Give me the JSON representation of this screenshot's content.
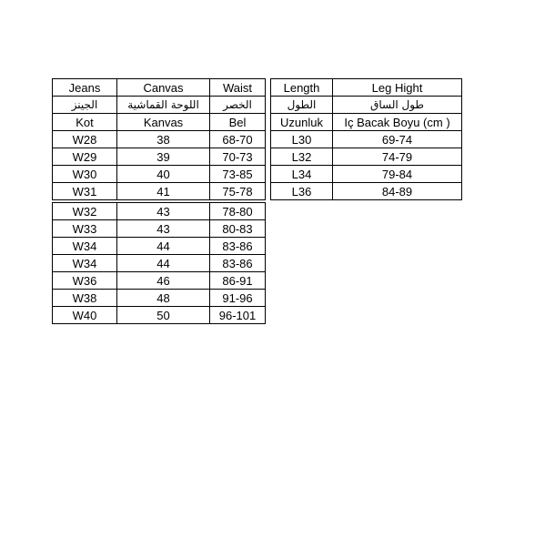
{
  "page": {
    "background_color": "#ffffff",
    "border_color": "#000000",
    "text_color": "#000000"
  },
  "size_chart": {
    "upper_left": {
      "headers_english": [
        "Jeans",
        "Canvas",
        "Waist"
      ],
      "headers_arabic": [
        "الجينز",
        "اللوحة القماشية",
        "الخصر"
      ],
      "headers_turkish": [
        "Kot",
        "Kanvas",
        "Bel"
      ],
      "rows": [
        [
          "W28",
          "38",
          "68-70"
        ],
        [
          "W29",
          "39",
          "70-73"
        ],
        [
          "W30",
          "40",
          "73-85"
        ],
        [
          "W31",
          "41",
          "75-78"
        ]
      ]
    },
    "upper_right": {
      "headers_english": [
        "Length",
        "Leg Hight"
      ],
      "headers_arabic": [
        "الطول",
        "طول الساق"
      ],
      "headers_turkish": [
        "Uzunluk",
        "Iç Bacak Boyu (cm )"
      ],
      "rows": [
        [
          "L30",
          "69-74"
        ],
        [
          "L32",
          "74-79"
        ],
        [
          "L34",
          "79-84"
        ],
        [
          "L36",
          "84-89"
        ]
      ]
    },
    "lower_left": {
      "rows": [
        [
          "W32",
          "43",
          "78-80"
        ],
        [
          "W33",
          "43",
          "80-83"
        ],
        [
          "W34",
          "44",
          "83-86"
        ],
        [
          "W34",
          "44",
          "83-86"
        ],
        [
          "W36",
          "46",
          "86-91"
        ],
        [
          "W38",
          "48",
          "91-96"
        ],
        [
          "W40",
          "50",
          "96-101"
        ]
      ]
    }
  }
}
